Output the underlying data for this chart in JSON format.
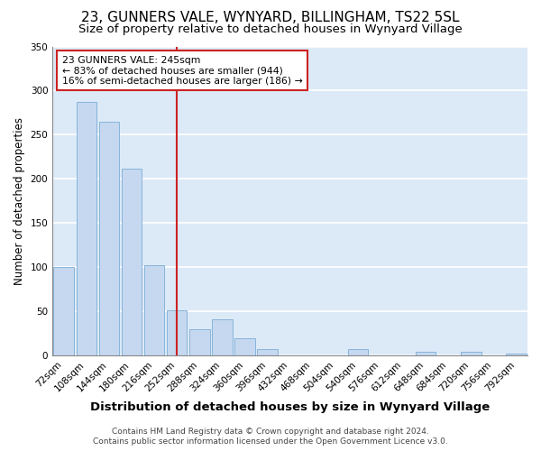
{
  "title": "23, GUNNERS VALE, WYNYARD, BILLINGHAM, TS22 5SL",
  "subtitle": "Size of property relative to detached houses in Wynyard Village",
  "xlabel": "Distribution of detached houses by size in Wynyard Village",
  "ylabel": "Number of detached properties",
  "bar_values": [
    100,
    287,
    265,
    212,
    103,
    51,
    30,
    41,
    20,
    8,
    0,
    0,
    0,
    8,
    0,
    0,
    5,
    0,
    5,
    0,
    3
  ],
  "categories": [
    "72sqm",
    "108sqm",
    "144sqm",
    "180sqm",
    "216sqm",
    "252sqm",
    "288sqm",
    "324sqm",
    "360sqm",
    "396sqm",
    "432sqm",
    "468sqm",
    "504sqm",
    "540sqm",
    "576sqm",
    "612sqm",
    "648sqm",
    "684sqm",
    "720sqm",
    "756sqm",
    "792sqm"
  ],
  "bar_color": "#c5d8f0",
  "bar_edge_color": "#7aadd4",
  "background_color": "#dce9f7",
  "grid_color": "#ffffff",
  "vline_x": 5,
  "vline_color": "#cc2222",
  "annotation_text": "23 GUNNERS VALE: 245sqm\n← 83% of detached houses are smaller (944)\n16% of semi-detached houses are larger (186) →",
  "annotation_box_color": "#ffffff",
  "annotation_box_edge": "#cc2222",
  "ylim": [
    0,
    350
  ],
  "yticks": [
    0,
    50,
    100,
    150,
    200,
    250,
    300,
    350
  ],
  "footer_text": "Contains HM Land Registry data © Crown copyright and database right 2024.\nContains public sector information licensed under the Open Government Licence v3.0.",
  "title_fontsize": 11,
  "subtitle_fontsize": 9.5,
  "xlabel_fontsize": 9.5,
  "ylabel_fontsize": 8.5,
  "tick_fontsize": 7.5,
  "footer_fontsize": 6.5
}
